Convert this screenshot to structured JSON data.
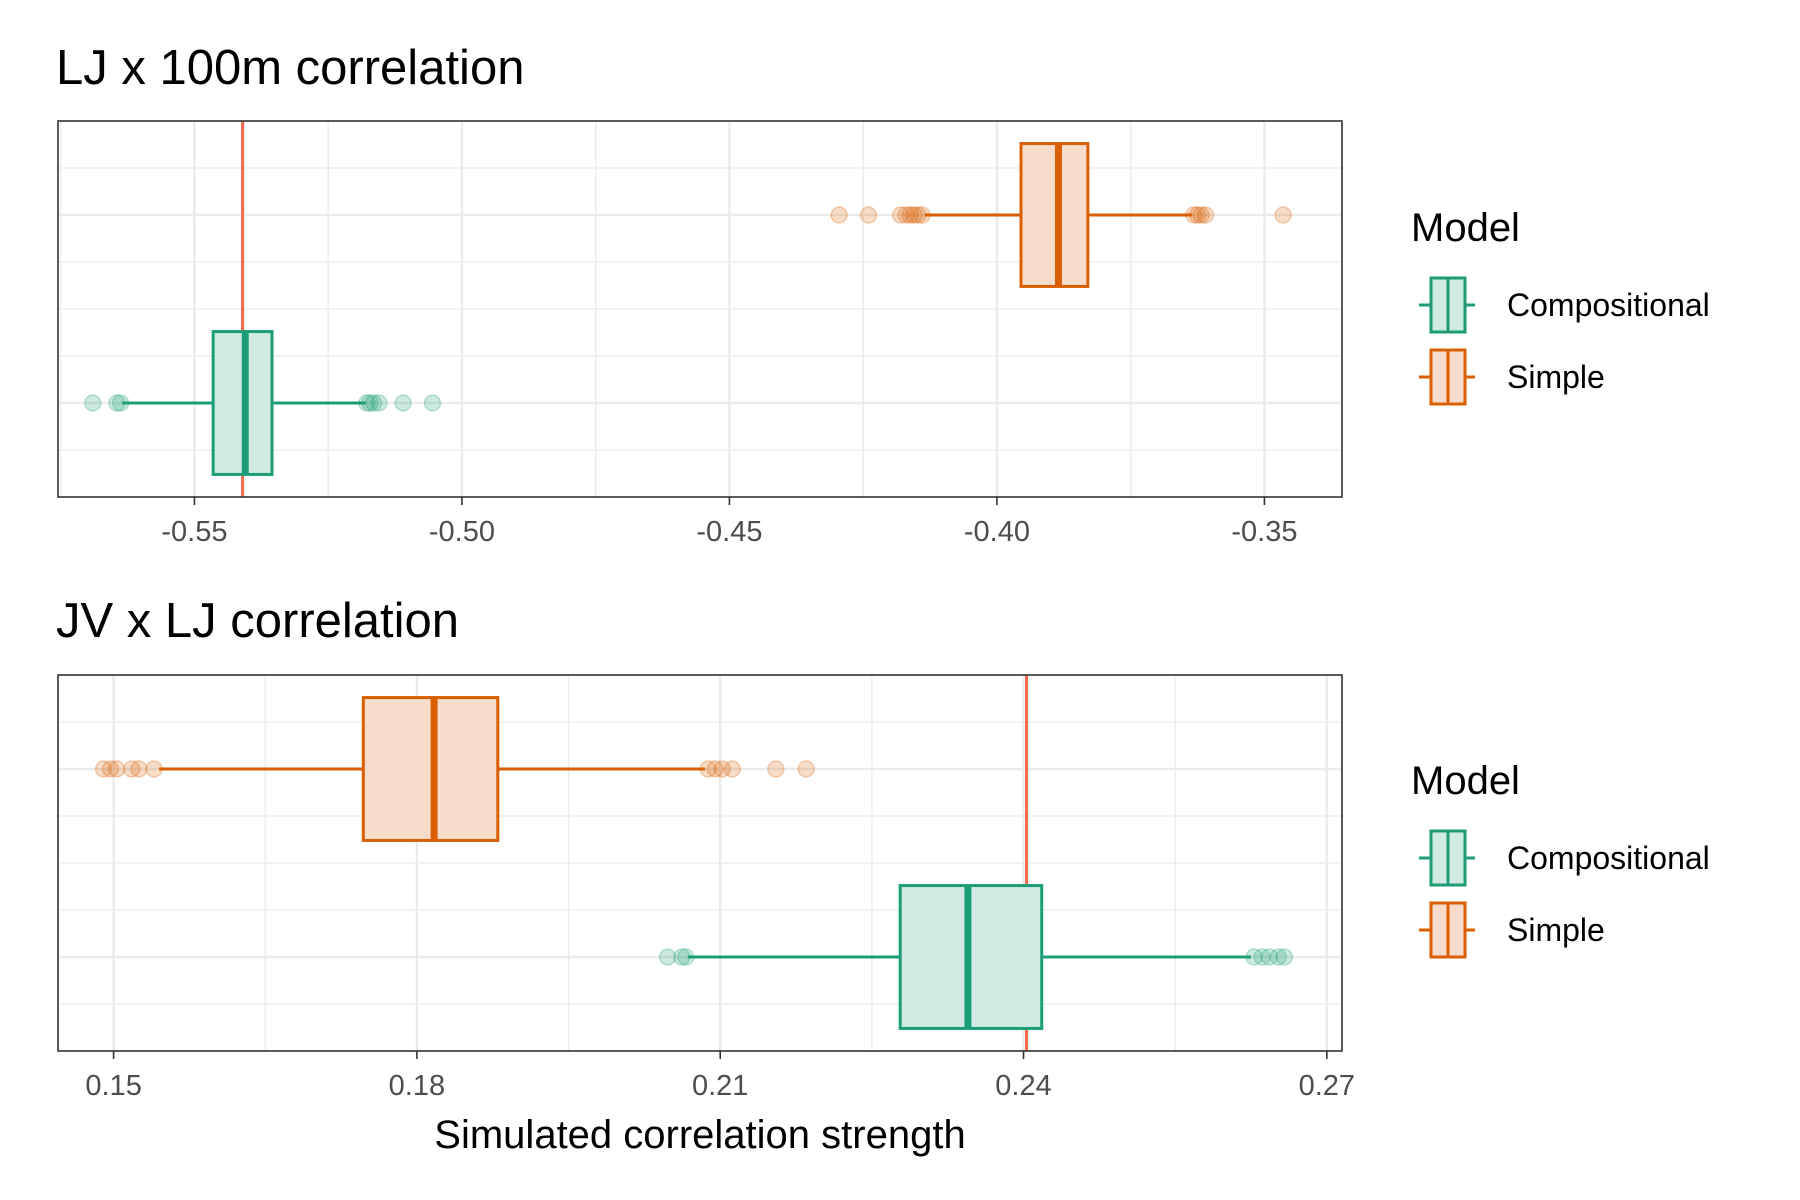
{
  "chart_data": [
    {
      "type": "boxplot",
      "title": "LJ x 100m correlation",
      "xlabel": "",
      "xlim": [
        -0.5755,
        -0.3355
      ],
      "ticks": [
        -0.55,
        -0.5,
        -0.45,
        -0.4,
        -0.35
      ],
      "tick_labels": [
        "-0.55",
        "-0.50",
        "-0.45",
        "-0.40",
        "-0.35"
      ],
      "reference_line": -0.541,
      "series": [
        {
          "name": "Simple",
          "color": "#d95f02",
          "box": {
            "whisker_low": -0.4135,
            "q1": -0.3955,
            "median": -0.3885,
            "q3": -0.383,
            "whisker_high": -0.3635
          },
          "outliers": [
            -0.4295,
            -0.424,
            -0.418,
            -0.417,
            -0.4162,
            -0.4155,
            -0.4148,
            -0.414,
            -0.3632,
            -0.3625,
            -0.3618,
            -0.361,
            -0.3465
          ]
        },
        {
          "name": "Compositional",
          "color": "#1b9e77",
          "box": {
            "whisker_low": -0.5635,
            "q1": -0.5465,
            "median": -0.5405,
            "q3": -0.5355,
            "whisker_high": -0.518
          },
          "outliers": [
            -0.569,
            -0.5645,
            -0.5638,
            -0.5178,
            -0.5172,
            -0.5165,
            -0.5155,
            -0.511,
            -0.5055
          ]
        }
      ]
    },
    {
      "type": "boxplot",
      "title": "JV x LJ correlation",
      "xlabel": "Simulated correlation strength",
      "xlim": [
        0.1445,
        0.2715
      ],
      "ticks": [
        0.15,
        0.18,
        0.21,
        0.24,
        0.27
      ],
      "tick_labels": [
        "0.15",
        "0.18",
        "0.21",
        "0.24",
        "0.27"
      ],
      "reference_line": 0.2403,
      "series": [
        {
          "name": "Simple",
          "color": "#d95f02",
          "box": {
            "whisker_low": 0.1545,
            "q1": 0.1747,
            "median": 0.1817,
            "q3": 0.188,
            "whisker_high": 0.2085
          },
          "outliers": [
            0.149,
            0.1497,
            0.1503,
            0.1518,
            0.1525,
            0.154,
            0.2088,
            0.2095,
            0.2102,
            0.2112,
            0.2155,
            0.2185
          ]
        },
        {
          "name": "Compositional",
          "color": "#1b9e77",
          "box": {
            "whisker_low": 0.2068,
            "q1": 0.2278,
            "median": 0.2345,
            "q3": 0.2418,
            "whisker_high": 0.2625
          },
          "outliers": [
            0.2048,
            0.2062,
            0.2066,
            0.2628,
            0.2636,
            0.2643,
            0.2652,
            0.2658
          ]
        }
      ]
    }
  ],
  "legend": {
    "title": "Model",
    "items": [
      {
        "label": "Compositional",
        "color": "#1b9e77",
        "fill": "#d1ebe3"
      },
      {
        "label": "Simple",
        "color": "#d95f02",
        "fill": "#f7dccc"
      }
    ]
  },
  "colors": {
    "reference_line": "#f4694b",
    "grid": "#ebebeb",
    "panel_border": "#333333"
  }
}
